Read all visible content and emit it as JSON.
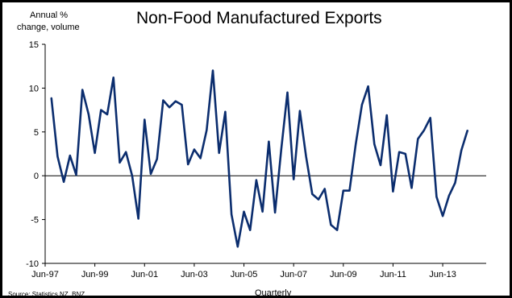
{
  "chart_data": {
    "type": "line",
    "title": "Non-Food Manufactured Exports",
    "ylabel_line1": "Annual %",
    "ylabel_line2": "change, volume",
    "xlabel": "Quarterly",
    "source": "Source: Statistics NZ, BNZ",
    "ylim": [
      -10,
      15
    ],
    "yticks": [
      {
        "value": 15,
        "label": "15"
      },
      {
        "value": 10,
        "label": "10"
      },
      {
        "value": 5,
        "label": "5"
      },
      {
        "value": 0,
        "label": "0"
      },
      {
        "value": -5,
        "label": "-5"
      },
      {
        "value": -10,
        "label": "-10"
      }
    ],
    "xticks": [
      {
        "x": "1997-06",
        "label": "Jun-97"
      },
      {
        "x": "1999-06",
        "label": "Jun-99"
      },
      {
        "x": "2001-06",
        "label": "Jun-01"
      },
      {
        "x": "2003-06",
        "label": "Jun-03"
      },
      {
        "x": "2005-06",
        "label": "Jun-05"
      },
      {
        "x": "2007-06",
        "label": "Jun-07"
      },
      {
        "x": "2009-06",
        "label": "Jun-09"
      },
      {
        "x": "2011-06",
        "label": "Jun-11"
      },
      {
        "x": "2013-06",
        "label": "Jun-13"
      }
    ],
    "grid": false,
    "line_color": "#0b2d6e",
    "series": [
      {
        "values": [
          {
            "x": "1997-09",
            "y": 8.9
          },
          {
            "x": "1997-12",
            "y": 2.2
          },
          {
            "x": "1998-03",
            "y": -0.7
          },
          {
            "x": "1998-06",
            "y": 2.3
          },
          {
            "x": "1998-09",
            "y": 0.1
          },
          {
            "x": "1998-12",
            "y": 9.8
          },
          {
            "x": "1999-03",
            "y": 7.0
          },
          {
            "x": "1999-06",
            "y": 2.6
          },
          {
            "x": "1999-09",
            "y": 7.5
          },
          {
            "x": "1999-12",
            "y": 7.0
          },
          {
            "x": "2000-03",
            "y": 11.2
          },
          {
            "x": "2000-06",
            "y": 1.5
          },
          {
            "x": "2000-09",
            "y": 2.7
          },
          {
            "x": "2000-12",
            "y": 0.0
          },
          {
            "x": "2001-03",
            "y": -4.9
          },
          {
            "x": "2001-06",
            "y": 6.4
          },
          {
            "x": "2001-09",
            "y": 0.2
          },
          {
            "x": "2001-12",
            "y": 1.9
          },
          {
            "x": "2002-03",
            "y": 8.6
          },
          {
            "x": "2002-06",
            "y": 7.8
          },
          {
            "x": "2002-09",
            "y": 8.5
          },
          {
            "x": "2002-12",
            "y": 8.1
          },
          {
            "x": "2003-03",
            "y": 1.3
          },
          {
            "x": "2003-06",
            "y": 3.0
          },
          {
            "x": "2003-09",
            "y": 2.0
          },
          {
            "x": "2003-12",
            "y": 5.2
          },
          {
            "x": "2004-03",
            "y": 12.0
          },
          {
            "x": "2004-06",
            "y": 2.6
          },
          {
            "x": "2004-09",
            "y": 7.3
          },
          {
            "x": "2004-12",
            "y": -4.4
          },
          {
            "x": "2005-03",
            "y": -8.1
          },
          {
            "x": "2005-06",
            "y": -4.1
          },
          {
            "x": "2005-09",
            "y": -6.2
          },
          {
            "x": "2005-12",
            "y": -0.5
          },
          {
            "x": "2006-03",
            "y": -4.1
          },
          {
            "x": "2006-06",
            "y": 3.9
          },
          {
            "x": "2006-09",
            "y": -4.2
          },
          {
            "x": "2006-12",
            "y": 3.0
          },
          {
            "x": "2007-03",
            "y": 9.5
          },
          {
            "x": "2007-06",
            "y": -0.4
          },
          {
            "x": "2007-09",
            "y": 7.4
          },
          {
            "x": "2007-12",
            "y": 2.2
          },
          {
            "x": "2008-03",
            "y": -2.1
          },
          {
            "x": "2008-06",
            "y": -2.7
          },
          {
            "x": "2008-09",
            "y": -1.5
          },
          {
            "x": "2008-12",
            "y": -5.6
          },
          {
            "x": "2009-03",
            "y": -6.2
          },
          {
            "x": "2009-06",
            "y": -1.7
          },
          {
            "x": "2009-09",
            "y": -1.7
          },
          {
            "x": "2009-12",
            "y": 3.6
          },
          {
            "x": "2010-03",
            "y": 8.1
          },
          {
            "x": "2010-06",
            "y": 10.2
          },
          {
            "x": "2010-09",
            "y": 3.6
          },
          {
            "x": "2010-12",
            "y": 1.2
          },
          {
            "x": "2011-03",
            "y": 6.9
          },
          {
            "x": "2011-06",
            "y": -1.8
          },
          {
            "x": "2011-09",
            "y": 2.7
          },
          {
            "x": "2011-12",
            "y": 2.5
          },
          {
            "x": "2012-03",
            "y": -1.4
          },
          {
            "x": "2012-06",
            "y": 4.2
          },
          {
            "x": "2012-09",
            "y": 5.2
          },
          {
            "x": "2012-12",
            "y": 6.6
          },
          {
            "x": "2013-03",
            "y": -2.4
          },
          {
            "x": "2013-06",
            "y": -4.6
          },
          {
            "x": "2013-09",
            "y": -2.3
          },
          {
            "x": "2013-12",
            "y": -0.8
          },
          {
            "x": "2014-03",
            "y": 2.9
          },
          {
            "x": "2014-06",
            "y": 5.2
          }
        ]
      }
    ]
  }
}
